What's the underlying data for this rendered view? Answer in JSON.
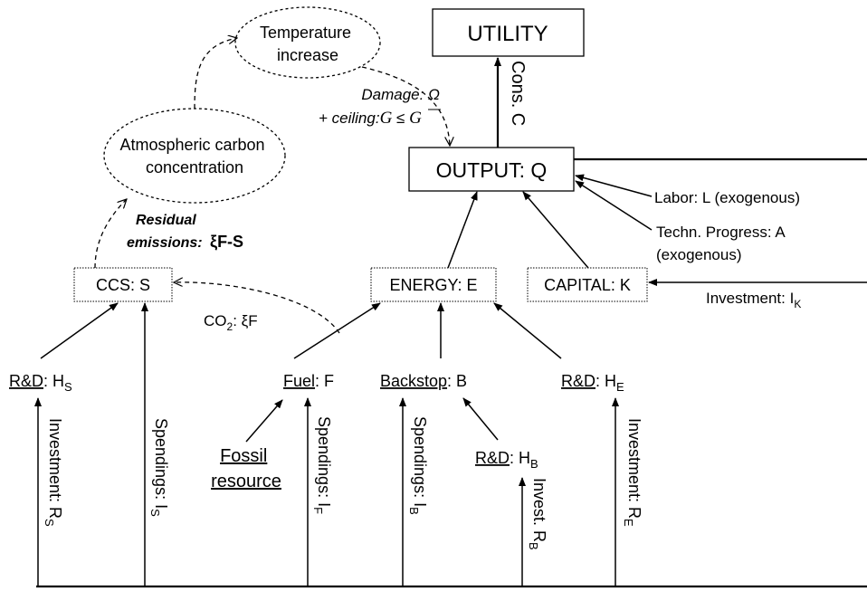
{
  "nodes": {
    "utility": "UTILITY",
    "output": "OUTPUT: Q",
    "temperature": [
      "Temperature",
      "increase"
    ],
    "atmosphere": [
      "Atmospheric carbon",
      "concentration"
    ],
    "ccs": "CCS: S",
    "energy": "ENERGY: E",
    "capital": "CAPITAL: K",
    "rd_s": {
      "underline": "R&D",
      "text": ": H",
      "sub": "S"
    },
    "fuel": {
      "underline": "Fuel",
      "text": ": F"
    },
    "backstop": {
      "underline": "Backstop",
      "text": ": B"
    },
    "rd_e": {
      "underline": "R&D",
      "text": ": H",
      "sub": "E"
    },
    "rd_b": {
      "underline": "R&D",
      "text": ": H",
      "sub": "B"
    },
    "fossil": [
      "Fossil",
      "resource"
    ]
  },
  "flows": {
    "cons": "Cons. C",
    "damage": "Damage: Ω",
    "ceiling": {
      "label": "+ ceiling:",
      "lhs": "G",
      "relation": " ≤ ",
      "rhs": "G"
    },
    "residual": {
      "line1": "Residual",
      "line2": "emissions:",
      "formula": "ξF-S"
    },
    "labor": "Labor: L (exogenous)",
    "techn": [
      "Techn. Progress: A",
      "(exogenous)"
    ],
    "investment_k": {
      "text": "Investment: I",
      "sub": "K"
    },
    "co2": {
      "text": "CO",
      "sub": "2",
      "rest": ": ξF"
    },
    "investment_rs": {
      "text": "Investment: R",
      "sub": "S"
    },
    "spendings_is": {
      "text": "Spendings: I",
      "sub": "S"
    },
    "spendings_if": {
      "text": "Spendings: I",
      "sub": "F"
    },
    "spendings_ib": {
      "text": "Spendings: I",
      "sub": "B"
    },
    "invest_rb": {
      "text": "Invest. R",
      "sub": "B"
    },
    "investment_re": {
      "text": "Investment: R",
      "sub": "E"
    }
  }
}
